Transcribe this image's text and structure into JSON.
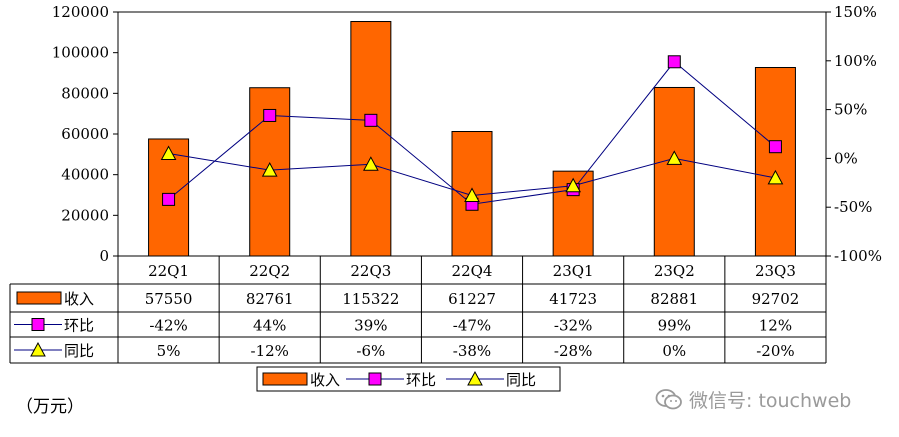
{
  "chart_data": {
    "type": "bar",
    "categories": [
      "22Q1",
      "22Q2",
      "22Q3",
      "22Q4",
      "23Q1",
      "23Q2",
      "23Q3"
    ],
    "series": [
      {
        "name": "收入",
        "kind": "bar",
        "axis": "left",
        "values": [
          57550,
          82761,
          115322,
          61227,
          41723,
          82881,
          92702
        ],
        "labels": [
          "57550",
          "82761",
          "115322",
          "61227",
          "41723",
          "82881",
          "92702"
        ]
      },
      {
        "name": "环比",
        "kind": "line",
        "marker": "square",
        "axis": "right",
        "values": [
          -42,
          44,
          39,
          -47,
          -32,
          99,
          12
        ],
        "labels": [
          "-42%",
          "44%",
          "39%",
          "-47%",
          "-32%",
          "99%",
          "12%"
        ]
      },
      {
        "name": "同比",
        "kind": "line",
        "marker": "triangle",
        "axis": "right",
        "values": [
          5,
          -12,
          -6,
          -38,
          -28,
          0,
          -20
        ],
        "labels": [
          "5%",
          "-12%",
          "-6%",
          "-38%",
          "-28%",
          "0%",
          "-20%"
        ]
      }
    ],
    "y_left": {
      "min": 0,
      "max": 120000,
      "ticks": [
        0,
        20000,
        40000,
        60000,
        80000,
        100000,
        120000
      ],
      "tick_labels": [
        "0",
        "20000",
        "40000",
        "60000",
        "80000",
        "100000",
        "120000"
      ]
    },
    "y_right": {
      "min": -100,
      "max": 150,
      "ticks": [
        -100,
        -50,
        0,
        50,
        100,
        150
      ],
      "tick_labels": [
        "-100%",
        "-50%",
        "0%",
        "50%",
        "100%",
        "150%"
      ]
    },
    "legend": {
      "items": [
        "收入",
        "环比",
        "同比"
      ],
      "placement": "bottom"
    },
    "unit_label": "（万元）",
    "data_table": true
  },
  "colors": {
    "bar": "#FF6600",
    "ring": "#FF00FF",
    "yoy": "#FFFF00",
    "line": "#000080"
  },
  "watermark": {
    "text": "微信号: touchweb",
    "icon": "wechat-icon"
  }
}
